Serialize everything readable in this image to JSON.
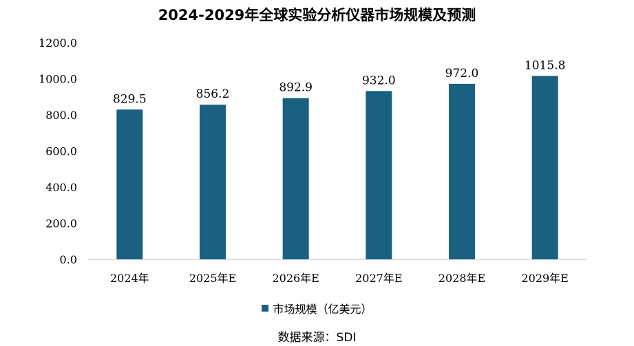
{
  "chart_data": {
    "type": "bar",
    "title": "2024-2029年全球实验分析仪器市场规模及预测",
    "categories": [
      "2024年",
      "2025年E",
      "2026年E",
      "2027年E",
      "2028年E",
      "2029年E"
    ],
    "series": [
      {
        "name": "市场规模（亿美元）",
        "values": [
          829.5,
          856.2,
          892.9,
          932.0,
          972.0,
          1015.8
        ],
        "color": "#1a6080"
      }
    ],
    "data_labels": [
      "829.5",
      "856.2",
      "892.9",
      "932.0",
      "972.0",
      "1015.8"
    ],
    "ylim": [
      0,
      1200
    ],
    "yticks": [
      0,
      200,
      400,
      600,
      800,
      1000,
      1200
    ],
    "ytick_labels": [
      "0.0",
      "200.0",
      "400.0",
      "600.0",
      "800.0",
      "1000.0",
      "1200.0"
    ],
    "xlabel": "",
    "ylabel": "",
    "grid": false,
    "legend_position": "bottom"
  },
  "source": "数据来源：SDI"
}
